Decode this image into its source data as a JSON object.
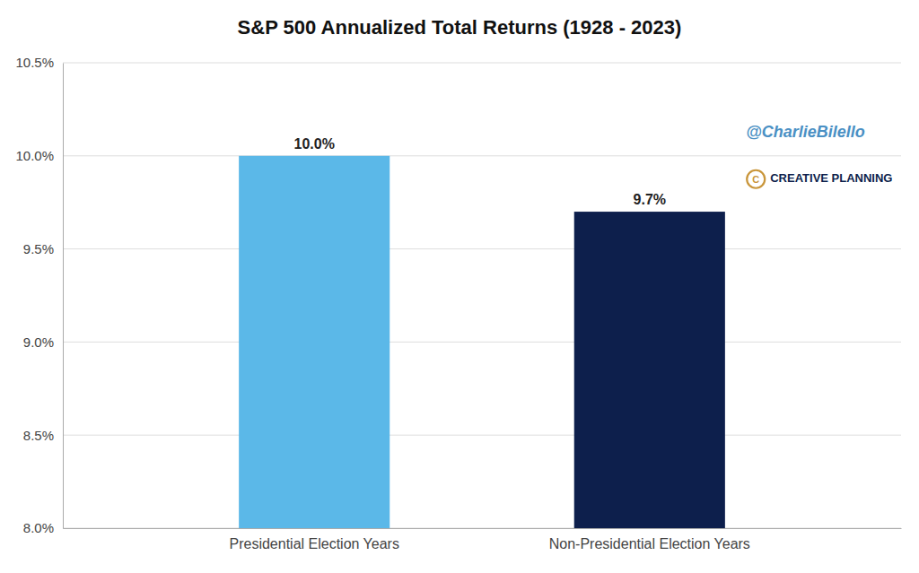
{
  "chart_data": {
    "type": "bar",
    "title": "S&P 500 Annualized Total Returns (1928 - 2023)",
    "categories": [
      "Presidential Election Years",
      "Non-Presidential Election Years"
    ],
    "values": [
      10.0,
      9.7
    ],
    "value_labels": [
      "10.0%",
      "9.7%"
    ],
    "colors": [
      "#5BB8E8",
      "#0D1F4C"
    ],
    "data_labels": true,
    "ylim": [
      8.0,
      10.5
    ],
    "yticks": [
      {
        "value": 8.0,
        "label": "8.0%"
      },
      {
        "value": 8.5,
        "label": "8.5%"
      },
      {
        "value": 9.0,
        "label": "9.0%"
      },
      {
        "value": 9.5,
        "label": "9.5%"
      },
      {
        "value": 10.0,
        "label": "10.0%"
      },
      {
        "value": 10.5,
        "label": "10.5%"
      }
    ],
    "grid": true,
    "annotations": [
      {
        "text": "@CharlieBilello",
        "color": "#4A90C4"
      },
      {
        "text": "CREATIVE PLANNING",
        "color": "#0D1F4C"
      },
      {
        "text": "C",
        "color": "#C9963B"
      }
    ]
  }
}
